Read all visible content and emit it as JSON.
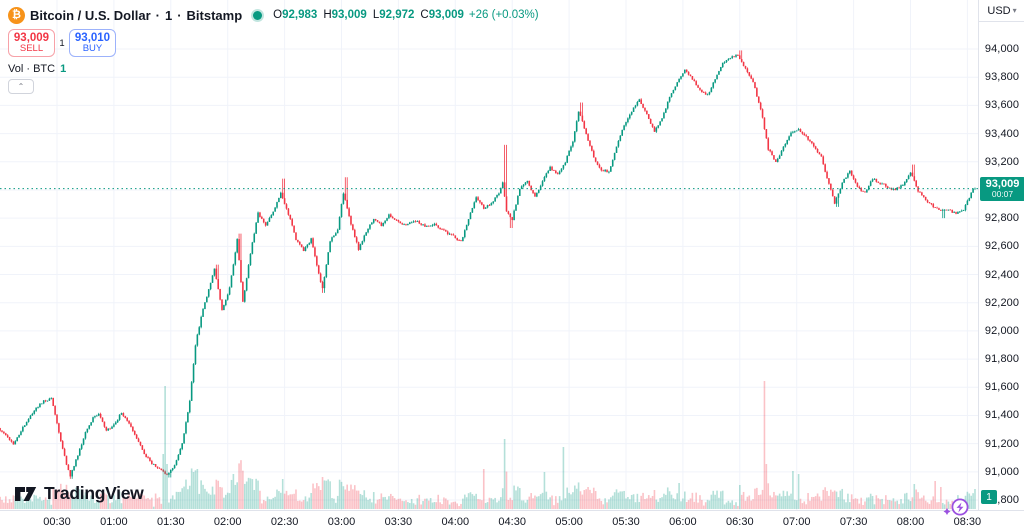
{
  "header": {
    "symbol_icon": "bitcoin-icon",
    "symbol_name": "Bitcoin / U.S. Dollar",
    "separator": "·",
    "interval": "1",
    "exchange": "Bitstamp",
    "ohlc": {
      "o_key": "O",
      "o_val": "92,983",
      "h_key": "H",
      "h_val": "93,009",
      "l_key": "L",
      "l_val": "92,972",
      "c_key": "C",
      "c_val": "93,009",
      "change": "+26 (+0.03%)"
    }
  },
  "trade_panel": {
    "sell_price": "93,009",
    "sell_label": "SELL",
    "spread": "1",
    "buy_price": "93,010",
    "buy_label": "BUY"
  },
  "volume_row": {
    "label": "Vol · BTC",
    "value": "1"
  },
  "collapse_arrow": "⌃",
  "currency": {
    "code": "USD",
    "chevron": "▾"
  },
  "logo": {
    "text": "TradingView"
  },
  "price_badge": {
    "price": "93,009",
    "countdown": "00:07"
  },
  "volume_axis_badge": "1",
  "colors": {
    "up": "#089981",
    "down": "#f23645",
    "vol_up": "rgba(8,153,129,0.30)",
    "vol_down": "rgba(242,54,69,0.30)",
    "grid": "#f0f3fa",
    "axis_border": "#e0e3eb",
    "text": "#131722",
    "muted": "#787b86",
    "buy_blue": "#2962ff",
    "sell_red": "#f23645",
    "bitcoin_orange": "#f7931a",
    "purple": "#9b51e0",
    "current_price_line": "#089981"
  },
  "chart_data": {
    "type": "candlestick",
    "title": "Bitcoin / U.S. Dollar",
    "exchange": "Bitstamp",
    "interval_minutes": 1,
    "current_price": 93009,
    "countdown": "00:07",
    "price_axis": {
      "min": 90800,
      "max": 94000,
      "step": 200,
      "labels": [
        {
          "v": 94000,
          "label": "94,000"
        },
        {
          "v": 93800,
          "label": "93,800"
        },
        {
          "v": 93600,
          "label": "93,600"
        },
        {
          "v": 93400,
          "label": "93,400"
        },
        {
          "v": 93200,
          "label": "93,200"
        },
        {
          "v": 92800,
          "label": "92,800"
        },
        {
          "v": 92600,
          "label": "92,600"
        },
        {
          "v": 92400,
          "label": "92,400"
        },
        {
          "v": 92200,
          "label": "92,200"
        },
        {
          "v": 92000,
          "label": "92,000"
        },
        {
          "v": 91800,
          "label": "91,800"
        },
        {
          "v": 91600,
          "label": "91,600"
        },
        {
          "v": 91400,
          "label": "91,400"
        },
        {
          "v": 91200,
          "label": "91,200"
        },
        {
          "v": 91000,
          "label": "91,000"
        },
        {
          "v": 90800,
          "label": "90,800"
        }
      ]
    },
    "time_axis": {
      "labels": [
        "00:30",
        "01:00",
        "01:30",
        "02:00",
        "02:30",
        "03:00",
        "03:30",
        "04:00",
        "04:30",
        "05:00",
        "05:30",
        "06:00",
        "06:30",
        "07:00",
        "07:30",
        "08:00",
        "08:30"
      ],
      "start_minute": 0,
      "end_minute": 514
    },
    "path": [
      [
        0,
        91310
      ],
      [
        4,
        91260
      ],
      [
        8,
        91200
      ],
      [
        12,
        91290
      ],
      [
        16,
        91380
      ],
      [
        20,
        91450
      ],
      [
        24,
        91500
      ],
      [
        28,
        91525
      ],
      [
        32,
        91280
      ],
      [
        36,
        91050
      ],
      [
        38,
        90970
      ],
      [
        42,
        91120
      ],
      [
        46,
        91280
      ],
      [
        50,
        91380
      ],
      [
        53,
        91410
      ],
      [
        57,
        91290
      ],
      [
        61,
        91330
      ],
      [
        65,
        91420
      ],
      [
        69,
        91350
      ],
      [
        73,
        91240
      ],
      [
        77,
        91130
      ],
      [
        81,
        91060
      ],
      [
        85,
        91020
      ],
      [
        89,
        90980
      ],
      [
        93,
        91050
      ],
      [
        97,
        91200
      ],
      [
        101,
        91500
      ],
      [
        104,
        91900
      ],
      [
        107,
        92100
      ],
      [
        110,
        92250
      ],
      [
        114,
        92440
      ],
      [
        118,
        92140
      ],
      [
        122,
        92300
      ],
      [
        126,
        92650
      ],
      [
        129,
        92200
      ],
      [
        133,
        92550
      ],
      [
        137,
        92840
      ],
      [
        141,
        92740
      ],
      [
        145,
        92850
      ],
      [
        149,
        92980
      ],
      [
        153,
        92830
      ],
      [
        157,
        92650
      ],
      [
        161,
        92570
      ],
      [
        165,
        92650
      ],
      [
        169,
        92400
      ],
      [
        171,
        92300
      ],
      [
        175,
        92640
      ],
      [
        179,
        92720
      ],
      [
        182,
        92980
      ],
      [
        186,
        92760
      ],
      [
        190,
        92580
      ],
      [
        194,
        92700
      ],
      [
        198,
        92800
      ],
      [
        202,
        92750
      ],
      [
        206,
        92820
      ],
      [
        210,
        92780
      ],
      [
        215,
        92750
      ],
      [
        220,
        92780
      ],
      [
        225,
        92740
      ],
      [
        230,
        92760
      ],
      [
        235,
        92710
      ],
      [
        240,
        92670
      ],
      [
        244,
        92630
      ],
      [
        248,
        92800
      ],
      [
        252,
        92950
      ],
      [
        256,
        92870
      ],
      [
        260,
        92900
      ],
      [
        264,
        92980
      ],
      [
        266,
        93060
      ],
      [
        268,
        92840
      ],
      [
        271,
        92790
      ],
      [
        275,
        93010
      ],
      [
        279,
        93060
      ],
      [
        283,
        92950
      ],
      [
        287,
        93060
      ],
      [
        291,
        93160
      ],
      [
        295,
        93110
      ],
      [
        299,
        93200
      ],
      [
        303,
        93340
      ],
      [
        306,
        93560
      ],
      [
        310,
        93400
      ],
      [
        314,
        93230
      ],
      [
        318,
        93140
      ],
      [
        322,
        93130
      ],
      [
        326,
        93310
      ],
      [
        330,
        93460
      ],
      [
        334,
        93560
      ],
      [
        338,
        93640
      ],
      [
        342,
        93530
      ],
      [
        346,
        93420
      ],
      [
        350,
        93510
      ],
      [
        354,
        93660
      ],
      [
        358,
        93760
      ],
      [
        362,
        93850
      ],
      [
        366,
        93790
      ],
      [
        370,
        93710
      ],
      [
        374,
        93670
      ],
      [
        378,
        93790
      ],
      [
        382,
        93900
      ],
      [
        386,
        93940
      ],
      [
        390,
        93960
      ],
      [
        394,
        93860
      ],
      [
        398,
        93760
      ],
      [
        402,
        93580
      ],
      [
        406,
        93290
      ],
      [
        410,
        93200
      ],
      [
        414,
        93300
      ],
      [
        418,
        93410
      ],
      [
        422,
        93430
      ],
      [
        426,
        93380
      ],
      [
        430,
        93310
      ],
      [
        434,
        93230
      ],
      [
        438,
        93040
      ],
      [
        441,
        92910
      ],
      [
        445,
        93050
      ],
      [
        449,
        93140
      ],
      [
        453,
        93020
      ],
      [
        457,
        92980
      ],
      [
        461,
        93080
      ],
      [
        465,
        93050
      ],
      [
        469,
        93020
      ],
      [
        473,
        93000
      ],
      [
        477,
        93040
      ],
      [
        481,
        93130
      ],
      [
        485,
        92990
      ],
      [
        489,
        92930
      ],
      [
        493,
        92880
      ],
      [
        497,
        92850
      ],
      [
        501,
        92860
      ],
      [
        505,
        92830
      ],
      [
        509,
        92860
      ],
      [
        512,
        92950
      ],
      [
        514,
        93009
      ]
    ],
    "wick_events": [
      [
        37,
        90950,
        "low"
      ],
      [
        89,
        90960,
        "low"
      ],
      [
        114,
        92470,
        "high"
      ],
      [
        126,
        92690,
        "high"
      ],
      [
        149,
        93080,
        "high"
      ],
      [
        170,
        92270,
        "low"
      ],
      [
        182,
        93090,
        "high"
      ],
      [
        266,
        93320,
        "high"
      ],
      [
        269,
        92730,
        "low"
      ],
      [
        306,
        93620,
        "high"
      ],
      [
        390,
        93990,
        "high"
      ],
      [
        441,
        92880,
        "low"
      ],
      [
        481,
        93180,
        "high"
      ],
      [
        497,
        92800,
        "low"
      ]
    ],
    "volume_spikes": [
      [
        86,
        55,
        1
      ],
      [
        87,
        123,
        1
      ],
      [
        88,
        45,
        1
      ],
      [
        104,
        40,
        1
      ],
      [
        123,
        35,
        1
      ],
      [
        149,
        30,
        1
      ],
      [
        170,
        32,
        0
      ],
      [
        255,
        40,
        0
      ],
      [
        266,
        70,
        1
      ],
      [
        287,
        37,
        1
      ],
      [
        297,
        62,
        1
      ],
      [
        358,
        26,
        1
      ],
      [
        390,
        24,
        1
      ],
      [
        403,
        128,
        0
      ],
      [
        404,
        45,
        0
      ],
      [
        418,
        38,
        1
      ],
      [
        421,
        35,
        1
      ],
      [
        482,
        25,
        1
      ],
      [
        493,
        28,
        0
      ],
      [
        496,
        22,
        0
      ],
      [
        514,
        20,
        1
      ]
    ]
  }
}
